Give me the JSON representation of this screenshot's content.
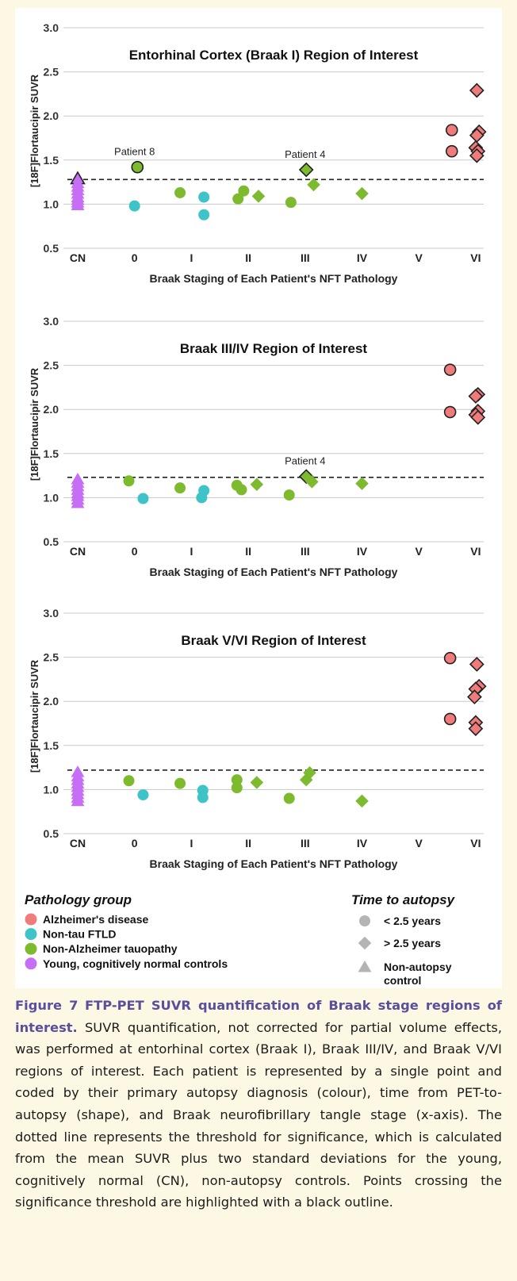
{
  "figure": {
    "label": "Figure 7",
    "title": "FTP-PET SUVR quantification of Braak stage regions of interest.",
    "caption": "SUVR quantification, not corrected for partial volume effects, was performed at entorhinal cortex (Braak I), Braak III/IV, and Braak V/VI regions of interest. Each patient is represented by a single point and coded by their primary autopsy diagnosis (colour), time from PET-to-autopsy (shape), and Braak neurofibrillary tangle stage (x-axis). The dotted line represents the threshold for significance, which is calculated from the mean SUVR plus two standard deviations for the young, cognitively normal (CN), non-autopsy controls. Points crossing the significance threshold are highlighted with a black outline."
  },
  "colors": {
    "ad": "#f07b7b",
    "ftld": "#3ec3c8",
    "tauopathy": "#7dba2e",
    "control": "#c66ff5",
    "shape_key": "#b4b4b4",
    "grid": "#c9c9c9"
  },
  "legend": {
    "group_title": "Pathology group",
    "groups": [
      {
        "key": "ad",
        "label": "Alzheimer's disease"
      },
      {
        "key": "ftld",
        "label": "Non-tau FTLD"
      },
      {
        "key": "tauopathy",
        "label": "Non-Alzheimer tauopathy"
      },
      {
        "key": "control",
        "label": "Young, cognitively normal controls"
      }
    ],
    "time_title": "Time to autopsy",
    "times": [
      {
        "shape": "circle",
        "label": "< 2.5 years"
      },
      {
        "shape": "diamond",
        "label": "> 2.5 years"
      },
      {
        "shape": "triangle",
        "label": "Non-autopsy",
        "label2": "control"
      }
    ]
  },
  "chart_data": [
    {
      "type": "scatter",
      "title": "Entorhinal Cortex (Braak I) Region of Interest",
      "xlabel": "Braak Staging of Each Patient's NFT Pathology",
      "ylabel": "[18F]Flortaucipir SUVR",
      "categories": [
        "CN",
        "0",
        "I",
        "II",
        "III",
        "IV",
        "V",
        "VI"
      ],
      "ylim": [
        0.5,
        3.0
      ],
      "yticks": [
        "0.5",
        "1.0",
        "1.5",
        "2.0",
        "2.5",
        "3.0"
      ],
      "threshold": 1.28,
      "annotations": [
        {
          "text": "Patient 8",
          "x": 1,
          "y": 1.42
        },
        {
          "text": "Patient 4",
          "x": 4,
          "y": 1.39
        }
      ],
      "points": [
        {
          "x": 0,
          "dx": 0,
          "y": 1.29,
          "group": "control",
          "shape": "triangle",
          "outline": true
        },
        {
          "x": 0,
          "dx": 0,
          "y": 1.24,
          "group": "control",
          "shape": "triangle"
        },
        {
          "x": 0,
          "dx": 0,
          "y": 1.2,
          "group": "control",
          "shape": "triangle"
        },
        {
          "x": 0,
          "dx": 0,
          "y": 1.16,
          "group": "control",
          "shape": "triangle"
        },
        {
          "x": 0,
          "dx": 0,
          "y": 1.12,
          "group": "control",
          "shape": "triangle"
        },
        {
          "x": 0,
          "dx": 0,
          "y": 1.08,
          "group": "control",
          "shape": "triangle"
        },
        {
          "x": 0,
          "dx": 0,
          "y": 1.05,
          "group": "control",
          "shape": "triangle"
        },
        {
          "x": 0,
          "dx": 0,
          "y": 1.02,
          "group": "control",
          "shape": "triangle"
        },
        {
          "x": 0,
          "dx": 0,
          "y": 0.99,
          "group": "control",
          "shape": "triangle"
        },
        {
          "x": 1,
          "dx": 0.05,
          "y": 1.42,
          "group": "tauopathy",
          "shape": "circle",
          "outline": true
        },
        {
          "x": 1,
          "dx": 0,
          "y": 0.98,
          "group": "ftld",
          "shape": "circle"
        },
        {
          "x": 2,
          "dx": -0.2,
          "y": 1.13,
          "group": "tauopathy",
          "shape": "circle"
        },
        {
          "x": 2,
          "dx": 0.22,
          "y": 1.08,
          "group": "ftld",
          "shape": "circle"
        },
        {
          "x": 2,
          "dx": 0.22,
          "y": 0.88,
          "group": "ftld",
          "shape": "circle"
        },
        {
          "x": 3,
          "dx": -0.18,
          "y": 1.06,
          "group": "tauopathy",
          "shape": "circle"
        },
        {
          "x": 3,
          "dx": -0.08,
          "y": 1.15,
          "group": "tauopathy",
          "shape": "circle"
        },
        {
          "x": 3,
          "dx": 0.18,
          "y": 1.09,
          "group": "tauopathy",
          "shape": "diamond"
        },
        {
          "x": 4,
          "dx": -0.25,
          "y": 1.02,
          "group": "tauopathy",
          "shape": "circle"
        },
        {
          "x": 4,
          "dx": 0.02,
          "y": 1.39,
          "group": "tauopathy",
          "shape": "diamond",
          "outline": true
        },
        {
          "x": 4,
          "dx": 0.15,
          "y": 1.22,
          "group": "tauopathy",
          "shape": "diamond"
        },
        {
          "x": 5,
          "dx": 0,
          "y": 1.12,
          "group": "tauopathy",
          "shape": "diamond"
        },
        {
          "x": 7,
          "dx": -0.42,
          "y": 1.84,
          "group": "ad",
          "shape": "circle",
          "outline": true
        },
        {
          "x": 7,
          "dx": -0.42,
          "y": 1.6,
          "group": "ad",
          "shape": "circle",
          "outline": true
        },
        {
          "x": 7,
          "dx": 0.02,
          "y": 2.29,
          "group": "ad",
          "shape": "diamond",
          "outline": true
        },
        {
          "x": 7,
          "dx": 0.06,
          "y": 1.82,
          "group": "ad",
          "shape": "diamond",
          "outline": true
        },
        {
          "x": 7,
          "dx": 0.02,
          "y": 1.78,
          "group": "ad",
          "shape": "diamond",
          "outline": true
        },
        {
          "x": 7,
          "dx": 0.0,
          "y": 1.64,
          "group": "ad",
          "shape": "diamond",
          "outline": true
        },
        {
          "x": 7,
          "dx": 0.04,
          "y": 1.6,
          "group": "ad",
          "shape": "diamond",
          "outline": true
        },
        {
          "x": 7,
          "dx": 0.02,
          "y": 1.55,
          "group": "ad",
          "shape": "diamond",
          "outline": true
        }
      ]
    },
    {
      "type": "scatter",
      "title": "Braak III/IV Region of Interest",
      "xlabel": "Braak Staging of Each Patient's NFT Pathology",
      "ylabel": "[18F]Flortaucipir SUVR",
      "categories": [
        "CN",
        "0",
        "I",
        "II",
        "III",
        "IV",
        "V",
        "VI"
      ],
      "ylim": [
        0.5,
        3.0
      ],
      "yticks": [
        "0.5",
        "1.0",
        "1.5",
        "2.0",
        "2.5",
        "3.0"
      ],
      "threshold": 1.23,
      "annotations": [
        {
          "text": "Patient 4",
          "x": 4,
          "y": 1.24
        }
      ],
      "points": [
        {
          "x": 0,
          "dx": 0,
          "y": 1.21,
          "group": "control",
          "shape": "triangle"
        },
        {
          "x": 0,
          "dx": 0,
          "y": 1.17,
          "group": "control",
          "shape": "triangle"
        },
        {
          "x": 0,
          "dx": 0,
          "y": 1.13,
          "group": "control",
          "shape": "triangle"
        },
        {
          "x": 0,
          "dx": 0,
          "y": 1.09,
          "group": "control",
          "shape": "triangle"
        },
        {
          "x": 0,
          "dx": 0,
          "y": 1.05,
          "group": "control",
          "shape": "triangle"
        },
        {
          "x": 0,
          "dx": 0,
          "y": 1.02,
          "group": "control",
          "shape": "triangle"
        },
        {
          "x": 0,
          "dx": 0,
          "y": 0.98,
          "group": "control",
          "shape": "triangle"
        },
        {
          "x": 0,
          "dx": 0,
          "y": 0.94,
          "group": "control",
          "shape": "triangle"
        },
        {
          "x": 1,
          "dx": -0.1,
          "y": 1.19,
          "group": "tauopathy",
          "shape": "circle"
        },
        {
          "x": 1,
          "dx": 0.15,
          "y": 0.99,
          "group": "ftld",
          "shape": "circle"
        },
        {
          "x": 2,
          "dx": -0.2,
          "y": 1.11,
          "group": "tauopathy",
          "shape": "circle"
        },
        {
          "x": 2,
          "dx": 0.22,
          "y": 1.08,
          "group": "ftld",
          "shape": "circle"
        },
        {
          "x": 2,
          "dx": 0.18,
          "y": 1.0,
          "group": "ftld",
          "shape": "circle"
        },
        {
          "x": 3,
          "dx": -0.2,
          "y": 1.14,
          "group": "tauopathy",
          "shape": "circle"
        },
        {
          "x": 3,
          "dx": -0.12,
          "y": 1.09,
          "group": "tauopathy",
          "shape": "circle"
        },
        {
          "x": 3,
          "dx": 0.15,
          "y": 1.15,
          "group": "tauopathy",
          "shape": "diamond"
        },
        {
          "x": 4,
          "dx": -0.28,
          "y": 1.03,
          "group": "tauopathy",
          "shape": "circle"
        },
        {
          "x": 4,
          "dx": 0.02,
          "y": 1.24,
          "group": "tauopathy",
          "shape": "diamond",
          "outline": true
        },
        {
          "x": 4,
          "dx": 0.12,
          "y": 1.18,
          "group": "tauopathy",
          "shape": "diamond"
        },
        {
          "x": 5,
          "dx": 0,
          "y": 1.16,
          "group": "tauopathy",
          "shape": "diamond"
        },
        {
          "x": 7,
          "dx": -0.45,
          "y": 2.45,
          "group": "ad",
          "shape": "circle",
          "outline": true
        },
        {
          "x": 7,
          "dx": -0.45,
          "y": 1.97,
          "group": "ad",
          "shape": "circle",
          "outline": true
        },
        {
          "x": 7,
          "dx": 0.04,
          "y": 2.17,
          "group": "ad",
          "shape": "diamond",
          "outline": true
        },
        {
          "x": 7,
          "dx": 0.0,
          "y": 2.15,
          "group": "ad",
          "shape": "diamond",
          "outline": true
        },
        {
          "x": 7,
          "dx": 0.04,
          "y": 1.98,
          "group": "ad",
          "shape": "diamond",
          "outline": true
        },
        {
          "x": 7,
          "dx": 0.0,
          "y": 1.94,
          "group": "ad",
          "shape": "diamond",
          "outline": true
        },
        {
          "x": 7,
          "dx": 0.04,
          "y": 1.91,
          "group": "ad",
          "shape": "diamond",
          "outline": true
        }
      ]
    },
    {
      "type": "scatter",
      "title": "Braak V/VI Region of Interest",
      "xlabel": "Braak Staging of Each Patient's NFT Pathology",
      "ylabel": "[18F]Flortaucipir SUVR",
      "categories": [
        "CN",
        "0",
        "I",
        "II",
        "III",
        "IV",
        "V",
        "VI"
      ],
      "ylim": [
        0.5,
        3.0
      ],
      "yticks": [
        "0.5",
        "1.0",
        "1.5",
        "2.0",
        "2.5",
        "3.0"
      ],
      "threshold": 1.22,
      "annotations": [],
      "points": [
        {
          "x": 0,
          "dx": 0,
          "y": 1.2,
          "group": "control",
          "shape": "triangle"
        },
        {
          "x": 0,
          "dx": 0,
          "y": 1.15,
          "group": "control",
          "shape": "triangle"
        },
        {
          "x": 0,
          "dx": 0,
          "y": 1.11,
          "group": "control",
          "shape": "triangle"
        },
        {
          "x": 0,
          "dx": 0,
          "y": 1.07,
          "group": "control",
          "shape": "triangle"
        },
        {
          "x": 0,
          "dx": 0,
          "y": 1.03,
          "group": "control",
          "shape": "triangle"
        },
        {
          "x": 0,
          "dx": 0,
          "y": 0.99,
          "group": "control",
          "shape": "triangle"
        },
        {
          "x": 0,
          "dx": 0,
          "y": 0.95,
          "group": "control",
          "shape": "triangle"
        },
        {
          "x": 0,
          "dx": 0,
          "y": 0.91,
          "group": "control",
          "shape": "triangle"
        },
        {
          "x": 0,
          "dx": 0,
          "y": 0.87,
          "group": "control",
          "shape": "triangle"
        },
        {
          "x": 1,
          "dx": -0.1,
          "y": 1.1,
          "group": "tauopathy",
          "shape": "circle"
        },
        {
          "x": 1,
          "dx": 0.15,
          "y": 0.94,
          "group": "ftld",
          "shape": "circle"
        },
        {
          "x": 2,
          "dx": -0.2,
          "y": 1.07,
          "group": "tauopathy",
          "shape": "circle"
        },
        {
          "x": 2,
          "dx": 0.2,
          "y": 0.99,
          "group": "ftld",
          "shape": "circle"
        },
        {
          "x": 2,
          "dx": 0.2,
          "y": 0.91,
          "group": "ftld",
          "shape": "circle"
        },
        {
          "x": 3,
          "dx": -0.2,
          "y": 1.11,
          "group": "tauopathy",
          "shape": "circle"
        },
        {
          "x": 3,
          "dx": -0.2,
          "y": 1.02,
          "group": "tauopathy",
          "shape": "circle"
        },
        {
          "x": 3,
          "dx": 0.15,
          "y": 1.08,
          "group": "tauopathy",
          "shape": "diamond"
        },
        {
          "x": 4,
          "dx": -0.28,
          "y": 0.9,
          "group": "tauopathy",
          "shape": "circle"
        },
        {
          "x": 4,
          "dx": 0.08,
          "y": 1.19,
          "group": "tauopathy",
          "shape": "diamond"
        },
        {
          "x": 4,
          "dx": 0.02,
          "y": 1.11,
          "group": "tauopathy",
          "shape": "diamond"
        },
        {
          "x": 5,
          "dx": 0,
          "y": 0.87,
          "group": "tauopathy",
          "shape": "diamond"
        },
        {
          "x": 7,
          "dx": -0.45,
          "y": 2.49,
          "group": "ad",
          "shape": "circle",
          "outline": true
        },
        {
          "x": 7,
          "dx": -0.45,
          "y": 1.8,
          "group": "ad",
          "shape": "circle",
          "outline": true
        },
        {
          "x": 7,
          "dx": 0.02,
          "y": 2.42,
          "group": "ad",
          "shape": "diamond",
          "outline": true
        },
        {
          "x": 7,
          "dx": 0.06,
          "y": 2.17,
          "group": "ad",
          "shape": "diamond",
          "outline": true
        },
        {
          "x": 7,
          "dx": 0.0,
          "y": 2.14,
          "group": "ad",
          "shape": "diamond",
          "outline": true
        },
        {
          "x": 7,
          "dx": -0.02,
          "y": 2.05,
          "group": "ad",
          "shape": "diamond",
          "outline": true
        },
        {
          "x": 7,
          "dx": 0.0,
          "y": 1.76,
          "group": "ad",
          "shape": "diamond",
          "outline": true
        },
        {
          "x": 7,
          "dx": 0.0,
          "y": 1.69,
          "group": "ad",
          "shape": "diamond",
          "outline": true
        }
      ]
    }
  ]
}
